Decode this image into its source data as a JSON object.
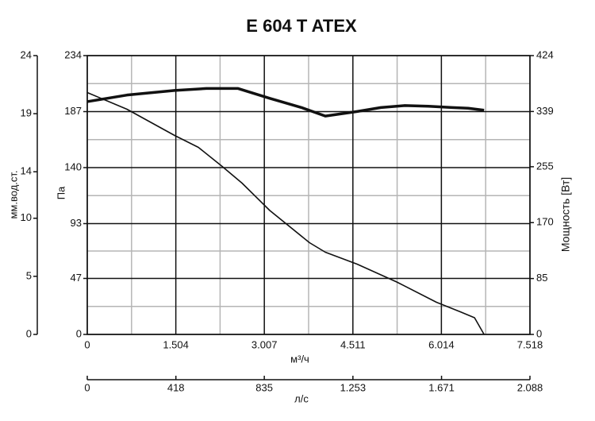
{
  "chart_data": {
    "type": "line",
    "title": "E 604 T ATEX",
    "x_label": "м³/ч",
    "y_label": "Па",
    "y2_label": "Мощность [Вт]",
    "xlim": [
      0,
      7518
    ],
    "xticks": [
      0,
      {
        "value": 1504,
        "label": "1.504"
      },
      {
        "value": 3007,
        "label": "3.007"
      },
      {
        "value": 4511,
        "label": "4.511"
      },
      {
        "value": 6014,
        "label": "6.014"
      },
      {
        "value": 7518,
        "label": "7.518"
      }
    ],
    "ylim": [
      0,
      234
    ],
    "yticks": [
      0,
      47,
      93,
      140,
      187,
      234
    ],
    "y2lim": [
      0,
      424
    ],
    "y2ticks": [
      0,
      85,
      170,
      255,
      339,
      424
    ],
    "x2_axis": {
      "label": "л/с",
      "lim": [
        0,
        2088
      ],
      "ticks": [
        0,
        418,
        835,
        {
          "value": 1253,
          "label": "1.253"
        },
        {
          "value": 1671,
          "label": "1.671"
        },
        {
          "value": 2088,
          "label": "2.088"
        }
      ]
    },
    "y3_axis": {
      "label": "мм.вод.ст.",
      "lim": [
        0,
        24
      ],
      "ticks": [
        0,
        5,
        10,
        14,
        19,
        24
      ]
    },
    "grid": true,
    "series": [
      {
        "color": "#111111",
        "x": [
          0,
          674,
          1483,
          1887,
          2291,
          2628,
          3100,
          3774,
          4043,
          4582,
          5256,
          5930,
          6334,
          6577,
          6739
        ],
        "values": [
          203,
          189,
          167,
          157,
          141,
          127,
          104,
          77,
          69,
          59,
          44,
          27,
          19,
          14,
          0
        ]
      },
      {
        "color": "#111111",
        "axis": "y2",
        "x": [
          0,
          674,
          1483,
          2022,
          2561,
          3100,
          3639,
          4043,
          4582,
          4986,
          5390,
          5795,
          6199,
          6469,
          6739
        ],
        "values": [
          354,
          364,
          371,
          374,
          374,
          359,
          345,
          332,
          339,
          345,
          348,
          347,
          345,
          344,
          341
        ]
      }
    ]
  }
}
